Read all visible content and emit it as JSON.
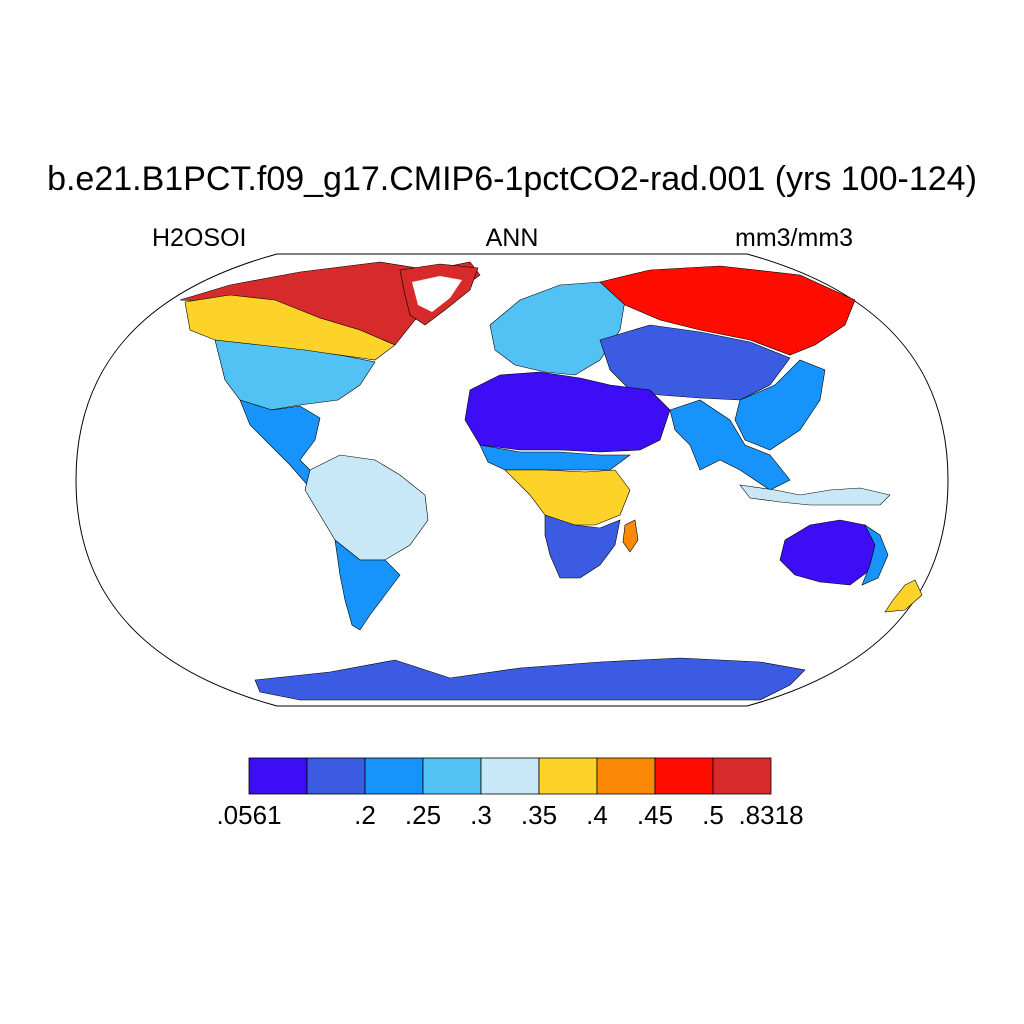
{
  "header": {
    "title": "b.e21.B1PCT.f09_g17.CMIP6-1pctCO2-rad.001 (yrs 100-124)",
    "variable": "H2OSOI",
    "season": "ANN",
    "units": "mm3/mm3"
  },
  "colorbar": {
    "colors": [
      "#3d0ef5",
      "#3b5be3",
      "#1694fb",
      "#52c1f3",
      "#c9e8f7",
      "#fdd32a",
      "#fc8905",
      "#fe0c00",
      "#d72b2b"
    ],
    "labels": [
      ".0561",
      ".2",
      ".25",
      ".3",
      ".35",
      ".4",
      ".45",
      ".5",
      ".8318"
    ]
  },
  "regions": [
    {
      "name": "north-america-arctic",
      "level": 8
    },
    {
      "name": "canada",
      "level": 5
    },
    {
      "name": "united-states",
      "level": 3
    },
    {
      "name": "mexico-central-america",
      "level": 2
    },
    {
      "name": "greenland-coast",
      "level": 8
    },
    {
      "name": "south-america-amazon",
      "level": 4
    },
    {
      "name": "south-america-south",
      "level": 2
    },
    {
      "name": "europe",
      "level": 3
    },
    {
      "name": "siberia",
      "level": 7
    },
    {
      "name": "central-asia",
      "level": 1
    },
    {
      "name": "east-asia",
      "level": 2
    },
    {
      "name": "sahara-arabia",
      "level": 0
    },
    {
      "name": "sahel",
      "level": 2
    },
    {
      "name": "central-africa",
      "level": 5
    },
    {
      "name": "southern-africa",
      "level": 1
    },
    {
      "name": "madagascar",
      "level": 2
    },
    {
      "name": "india-southeast-asia",
      "level": 4
    },
    {
      "name": "indonesia",
      "level": 6
    },
    {
      "name": "australia",
      "level": 0
    },
    {
      "name": "australia-east-coast",
      "level": 2
    },
    {
      "name": "new-zealand",
      "level": 5
    },
    {
      "name": "antarctica",
      "level": 1
    }
  ]
}
